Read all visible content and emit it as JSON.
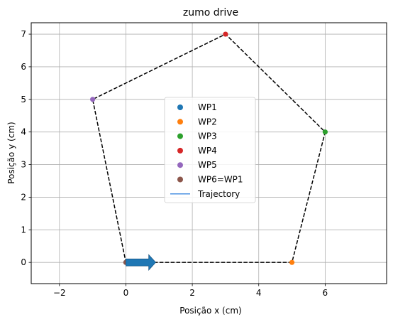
{
  "chart_data": {
    "type": "scatter",
    "title": "zumo drive",
    "xlabel": "Posição x (cm)",
    "ylabel": "Posição y (cm)",
    "xlim": [
      -2.85,
      7.85
    ],
    "ylim": [
      -0.65,
      7.35
    ],
    "x_ticks": [
      -2,
      0,
      2,
      4,
      6
    ],
    "y_ticks": [
      0,
      1,
      2,
      3,
      4,
      5,
      6,
      7
    ],
    "grid": true,
    "legend_position": "center",
    "series": [
      {
        "name": "WP1",
        "x": [
          0
        ],
        "y": [
          0
        ],
        "color": "#1f77b4"
      },
      {
        "name": "WP2",
        "x": [
          5
        ],
        "y": [
          0
        ],
        "color": "#ff7f0e"
      },
      {
        "name": "WP3",
        "x": [
          6
        ],
        "y": [
          4
        ],
        "color": "#2ca02c"
      },
      {
        "name": "WP4",
        "x": [
          3
        ],
        "y": [
          7
        ],
        "color": "#d62728"
      },
      {
        "name": "WP5",
        "x": [
          -1
        ],
        "y": [
          5
        ],
        "color": "#9467bd"
      },
      {
        "name": "WP6=WP1",
        "x": [
          0
        ],
        "y": [
          0
        ],
        "color": "#8c564b"
      }
    ],
    "path": {
      "x": [
        0,
        5,
        6,
        3,
        -1,
        0
      ],
      "y": [
        0,
        0,
        4,
        7,
        5,
        0
      ],
      "style": "dashed",
      "color": "#000000"
    },
    "trajectory": {
      "name": "Trajectory",
      "color": "#4a90e2"
    },
    "arrow": {
      "x": 0,
      "y": 0,
      "dx": 0.9,
      "dy": 0,
      "color": "#1f77b4"
    }
  }
}
